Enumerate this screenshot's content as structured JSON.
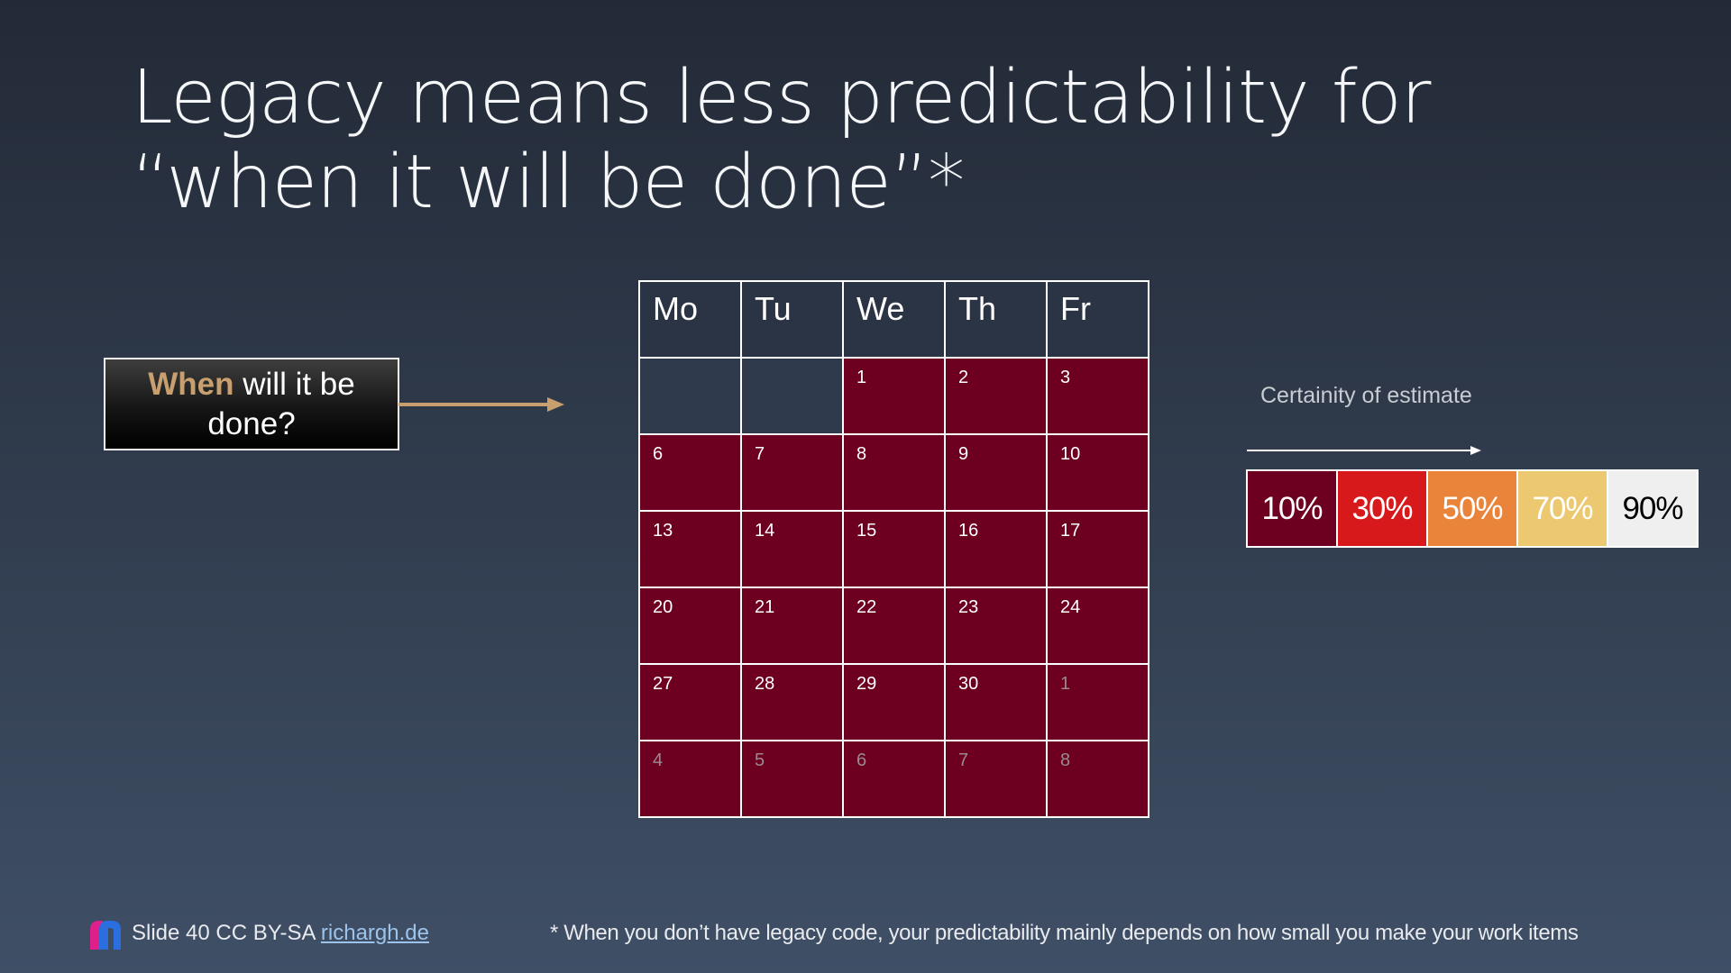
{
  "title": {
    "line1": "Legacy means less predictability for",
    "line2": "“when it will be done”*"
  },
  "question": {
    "highlight": "When",
    "rest": " will it be done?"
  },
  "calendar": {
    "headers": [
      "Mo",
      "Tu",
      "We",
      "Th",
      "Fr"
    ],
    "weeks": [
      [
        "",
        "",
        "1",
        "2",
        "3"
      ],
      [
        "6",
        "7",
        "8",
        "9",
        "10"
      ],
      [
        "13",
        "14",
        "15",
        "16",
        "17"
      ],
      [
        "20",
        "21",
        "22",
        "23",
        "24"
      ],
      [
        "27",
        "28",
        "29",
        "30",
        "1"
      ],
      [
        "4",
        "5",
        "6",
        "7",
        "8"
      ]
    ],
    "dimmed_cells": [
      "4-4",
      "5-0",
      "5-1",
      "5-2",
      "5-3",
      "5-4"
    ],
    "day_color": "#6d0020"
  },
  "certainty": {
    "label": "Certainity of estimate",
    "levels": [
      {
        "label": "10%",
        "color": "#6d0020",
        "text_color": "#ffffff"
      },
      {
        "label": "30%",
        "color": "#d7191c",
        "text_color": "#ffffff"
      },
      {
        "label": "50%",
        "color": "#e9843a",
        "text_color": "#ffffff"
      },
      {
        "label": "70%",
        "color": "#ecc971",
        "text_color": "#ffffff"
      },
      {
        "label": "90%",
        "color": "#efefef",
        "text_color": "#000000"
      }
    ]
  },
  "footer": {
    "slide_text": "Slide 40 CC BY-SA ",
    "link_text": "richargh.de",
    "footnote": "* When you don’t have legacy code, your predictability mainly depends on how small you make your work items"
  },
  "colors": {
    "accent_arrow": "#c8a070",
    "logo_pink": "#e0208a",
    "logo_blue": "#2a6ee0"
  }
}
